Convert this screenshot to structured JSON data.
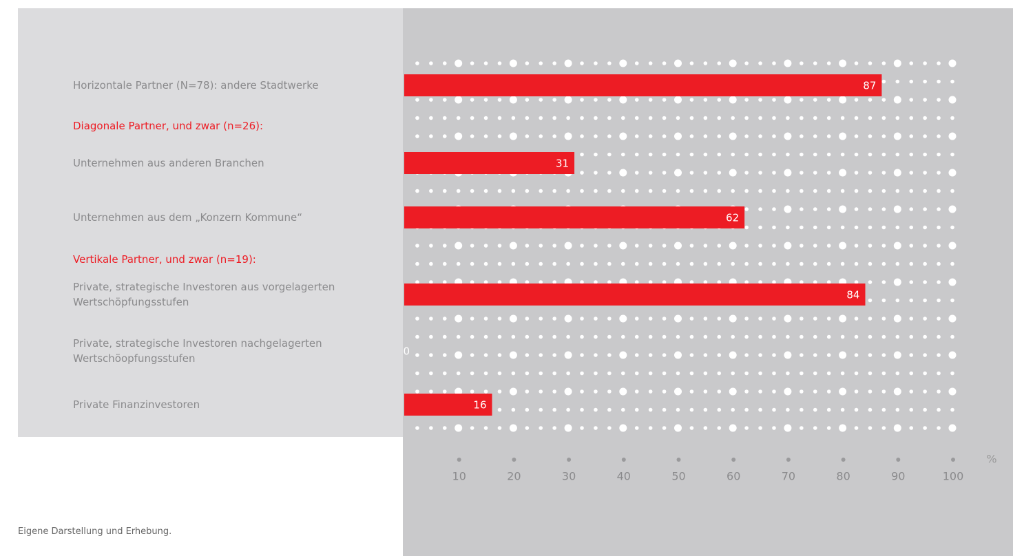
{
  "chart_data": {
    "type": "bar",
    "orientation": "horizontal",
    "categories": [
      "Horizontale Partner (N=78): andere Stadtwerke",
      "Diagonale Partner, und zwar (n=26):",
      "Unternehmen aus anderen Branchen",
      "Unternehmen aus dem „Konzern Kommune“",
      "Vertikale Partner, und zwar (n=19):",
      "Private, strategische Investoren aus vorgelagerten\nWertschöpfungsstufen",
      "Private, strategische Investoren nachgelagerten\nWertschöopfungsstufen",
      "Private Finanzinvestoren"
    ],
    "values": [
      87,
      null,
      31,
      62,
      null,
      84,
      0,
      16
    ],
    "color": "#ed1c24",
    "xlim": [
      0,
      100
    ],
    "xticks": [
      10,
      20,
      30,
      40,
      50,
      60,
      70,
      80,
      90,
      100
    ],
    "x_unit": "%",
    "source": "Eigene Darstellung und Erhebung."
  }
}
